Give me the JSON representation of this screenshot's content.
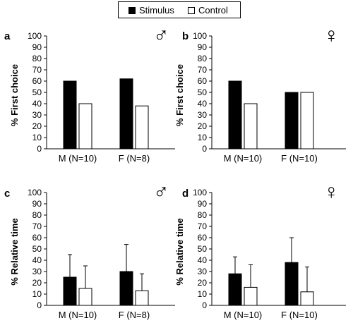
{
  "legend": {
    "stimulus_label": "Stimulus",
    "control_label": "Control",
    "stimulus_color": "#000000",
    "control_color": "#ffffff"
  },
  "chart_data": [
    {
      "panel": "a",
      "type": "bar",
      "sex_symbol": "♂",
      "ylabel": "% First choice",
      "ylim": [
        0,
        100
      ],
      "yticks": [
        0,
        10,
        20,
        30,
        40,
        50,
        60,
        70,
        80,
        90,
        100
      ],
      "categories": [
        "M (N=10)",
        "F (N=8)"
      ],
      "series": [
        {
          "name": "Stimulus",
          "values": [
            60,
            62
          ]
        },
        {
          "name": "Control",
          "values": [
            40,
            38
          ]
        }
      ]
    },
    {
      "panel": "b",
      "type": "bar",
      "sex_symbol": "♀",
      "ylabel": "% First choice",
      "ylim": [
        0,
        100
      ],
      "yticks": [
        0,
        10,
        20,
        30,
        40,
        50,
        60,
        70,
        80,
        90,
        100
      ],
      "categories": [
        "M (N=10)",
        "F (N=10)"
      ],
      "series": [
        {
          "name": "Stimulus",
          "values": [
            60,
            50
          ]
        },
        {
          "name": "Control",
          "values": [
            40,
            50
          ]
        }
      ]
    },
    {
      "panel": "c",
      "type": "bar",
      "sex_symbol": "♂",
      "ylabel": "% Relative time",
      "ylim": [
        0,
        100
      ],
      "yticks": [
        0,
        10,
        20,
        30,
        40,
        50,
        60,
        70,
        80,
        90,
        100
      ],
      "categories": [
        "M (N=10)",
        "F (N=8)"
      ],
      "series": [
        {
          "name": "Stimulus",
          "values": [
            25,
            30
          ],
          "error_upper": [
            45,
            54
          ]
        },
        {
          "name": "Control",
          "values": [
            15,
            13
          ],
          "error_upper": [
            35,
            28
          ]
        }
      ]
    },
    {
      "panel": "d",
      "type": "bar",
      "sex_symbol": "♀",
      "ylabel": "% Relative time",
      "ylim": [
        0,
        100
      ],
      "yticks": [
        0,
        10,
        20,
        30,
        40,
        50,
        60,
        70,
        80,
        90,
        100
      ],
      "categories": [
        "M (N=10)",
        "F (N=10)"
      ],
      "series": [
        {
          "name": "Stimulus",
          "values": [
            28,
            38
          ],
          "error_upper": [
            43,
            60
          ]
        },
        {
          "name": "Control",
          "values": [
            16,
            12
          ],
          "error_upper": [
            36,
            34
          ]
        }
      ]
    }
  ]
}
